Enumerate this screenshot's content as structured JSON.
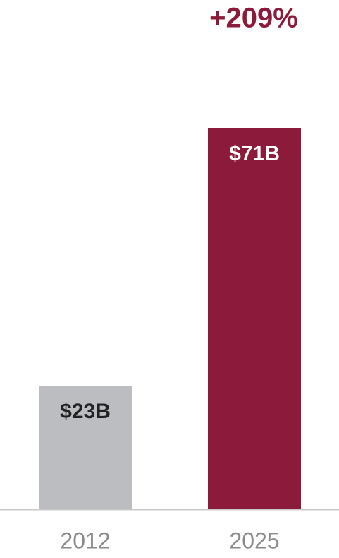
{
  "chart_data": {
    "type": "bar",
    "annotation": "+209%",
    "categories": [
      "2012",
      "2025"
    ],
    "values": [
      23,
      71
    ],
    "value_labels": [
      "$23B",
      "$71B"
    ],
    "colors": [
      "#bcbdc0",
      "#8c1a3a"
    ],
    "annotation_color": "#8c1a3a"
  }
}
